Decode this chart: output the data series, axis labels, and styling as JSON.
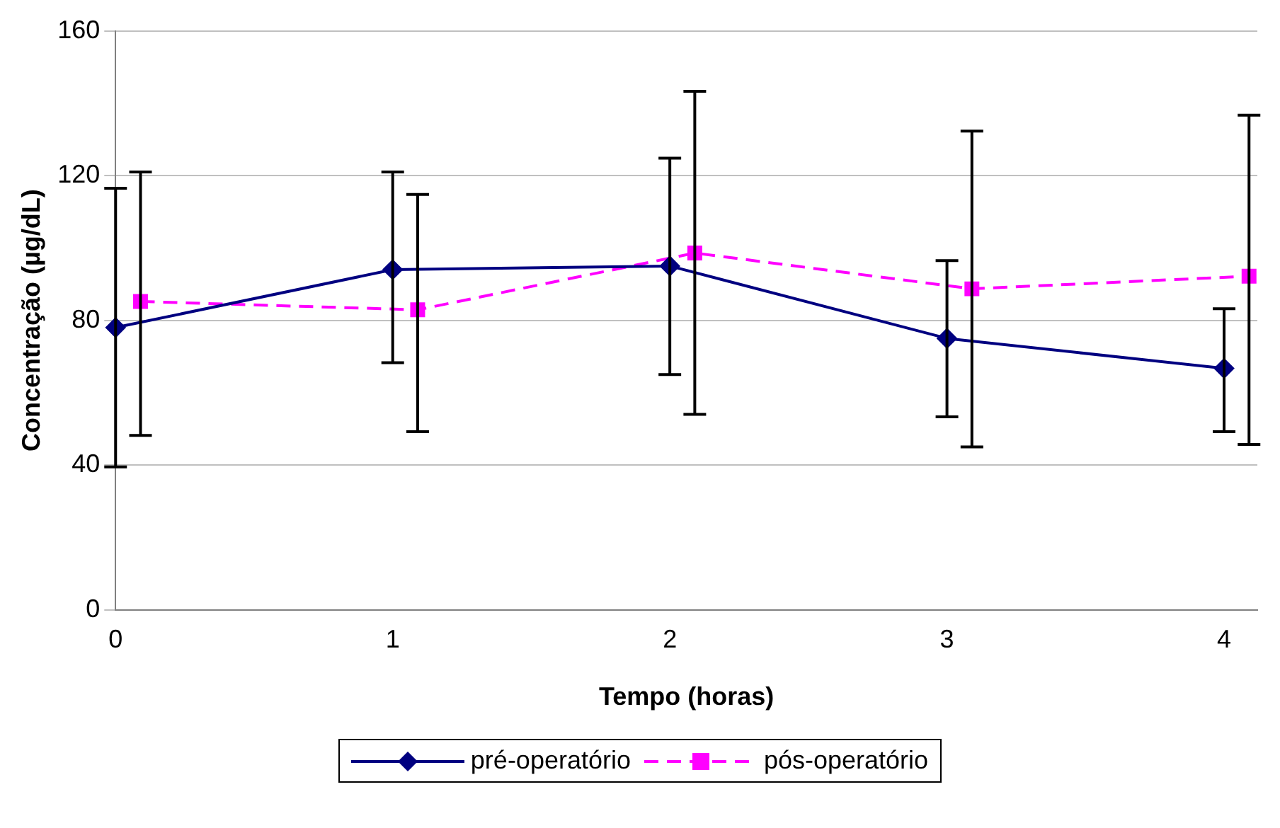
{
  "chart_data": {
    "type": "line",
    "xlabel": "Tempo (horas)",
    "ylabel": "Concentração (µg/dL)",
    "xlim": [
      0,
      4.12
    ],
    "xticks": [
      0,
      1,
      2,
      3,
      4
    ],
    "ylim": [
      0,
      160
    ],
    "yticks": [
      0,
      40,
      80,
      120,
      160
    ],
    "grid": "y",
    "legend": "bottom",
    "series": [
      {
        "name": "pré-operatório",
        "color": "#000080",
        "marker": "diamond",
        "line_style": "solid",
        "x": [
          0,
          1,
          2,
          3,
          4
        ],
        "values": [
          78,
          94,
          95,
          75,
          66.7
        ],
        "errors": [
          38.5,
          [
            68.3,
            121
          ],
          [
            65,
            124.8
          ],
          [
            53.3,
            96.5
          ],
          [
            49.2,
            83.2
          ]
        ]
      },
      {
        "name": "pós-operatório",
        "color": "#ff00ff",
        "marker": "square",
        "line_style": "dashed",
        "x": [
          0.09,
          1.09,
          2.09,
          3.09,
          4.09
        ],
        "values": [
          85.2,
          82.9,
          98.6,
          88.7,
          92.2
        ],
        "errors": [
          [
            48.2,
            121
          ],
          [
            49.2,
            114.8
          ],
          [
            54,
            143.3
          ],
          [
            45,
            132.3
          ],
          [
            45.7,
            136.7
          ]
        ]
      }
    ]
  }
}
